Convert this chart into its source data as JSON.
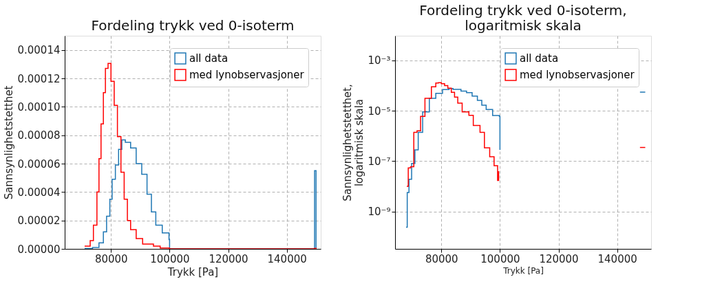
{
  "chart_data": [
    {
      "type": "step",
      "title": "Fordeling trykk ved 0-isoterm",
      "xlabel": "Trykk [Pa]",
      "ylabel": "Sannsynlighetstetthet",
      "xlim": [
        64200,
        151600
      ],
      "xticks": [
        80000,
        100000,
        120000,
        140000
      ],
      "ylim": [
        0,
        0.00015
      ],
      "yticks": [
        {
          "value": 0,
          "label": "0.00000"
        },
        {
          "value": 2e-05,
          "label": "0.00002"
        },
        {
          "value": 4e-05,
          "label": "0.00004"
        },
        {
          "value": 6e-05,
          "label": "0.00006"
        },
        {
          "value": 8e-05,
          "label": "0.00008"
        },
        {
          "value": 0.0001,
          "label": "0.00010"
        },
        {
          "value": 0.00012,
          "label": "0.00012"
        },
        {
          "value": 0.00014,
          "label": "0.00014"
        }
      ],
      "grid": true,
      "legend": "top right",
      "series": [
        {
          "name": "all data",
          "color": "#1f77b4",
          "x": [
            71000,
            73700,
            75900,
            77400,
            78500,
            79600,
            80400,
            81500,
            82600,
            83700,
            84900,
            86700,
            88600,
            90500,
            92300,
            93800,
            95300,
            97500,
            99800,
            100000,
            149500,
            150000
          ],
          "values": [
            2e-07,
            1e-06,
            4.2e-06,
            1.2e-05,
            2.3e-05,
            3.5e-05,
            4.9e-05,
            5.9e-05,
            7e-05,
            7.67e-05,
            7.5e-05,
            7.1e-05,
            6e-05,
            5.25e-05,
            3.85e-05,
            2.6e-05,
            1.67e-05,
            1.12e-05,
            6.5e-06,
            0,
            5.5e-05,
            0
          ]
        },
        {
          "name": "med lynobservasjoner",
          "color": "#ff0000",
          "x": [
            71000,
            72900,
            74000,
            75200,
            75900,
            76600,
            77400,
            78100,
            79000,
            80000,
            81100,
            82200,
            83400,
            84500,
            85600,
            86700,
            88600,
            90800,
            94500,
            96800,
            100000,
            149500,
            150000
          ],
          "values": [
            1.9e-06,
            5.8e-06,
            1.67e-05,
            4e-05,
            6.35e-05,
            8.8e-05,
            0.00011,
            0.000127,
            0.0001305,
            0.000118,
            0.000101,
            7.9e-05,
            5.4e-05,
            3.5e-05,
            2e-05,
            1.36e-05,
            7.3e-06,
            3.4e-06,
            1.9e-06,
            6e-07,
            0,
            3.5e-07,
            0
          ]
        }
      ]
    },
    {
      "type": "step",
      "title": "Fordeling trykk ved 0-isoterm,\nlogaritmisk skala",
      "xlabel": "Trykk [Pa]",
      "ylabel": "Sannsynlighetstetthet,\nlogaritmisk skala",
      "xlim": [
        64200,
        151600
      ],
      "xticks": [
        80000,
        100000,
        120000,
        140000
      ],
      "ylim": [
        3.3e-11,
        0.0095
      ],
      "yticks": [
        {
          "value": 1e-09,
          "label": "10⁻⁹"
        },
        {
          "value": 1e-07,
          "label": "10⁻⁷"
        },
        {
          "value": 1e-05,
          "label": "10⁻⁵"
        },
        {
          "value": 0.001,
          "label": "10⁻³"
        }
      ],
      "log": "y",
      "grid": true,
      "legend": "top right",
      "series": [
        {
          "name": "all data",
          "color": "#1f77b4",
          "x": [
            67970,
            68350,
            68950,
            69850,
            70980,
            72100,
            73610,
            75900,
            78100,
            80400,
            82600,
            84000,
            86700,
            88600,
            90500,
            92300,
            93800,
            95300,
            97500,
            99800,
            100000,
            100300,
            147800,
            149600
          ],
          "values": [
            2.4e-10,
            5.7e-09,
            1.9e-08,
            8.1e-08,
            2.8e-07,
            1.4e-06,
            9e-06,
            3.1e-05,
            4.9e-05,
            7e-05,
            7.7e-05,
            7.1e-05,
            6e-05,
            5.25e-05,
            3.85e-05,
            2.6e-05,
            1.67e-05,
            1.12e-05,
            6.5e-06,
            6e-06,
            2.8e-07,
            null,
            5.5e-05,
            5.5e-05
          ]
        },
        {
          "name": "med lynobservasjoner",
          "color": "#ff0000",
          "x": [
            68200,
            68700,
            69500,
            70600,
            71700,
            72900,
            74400,
            76600,
            78100,
            79000,
            80000,
            81100,
            82200,
            83400,
            84500,
            85600,
            87100,
            89400,
            90900,
            93200,
            94700,
            96500,
            98000,
            99200,
            99550,
            100000,
            147800,
            149600
          ],
          "values": [
            1e-08,
            5.4e-08,
            6e-08,
            1.4e-06,
            1.6e-06,
            6e-06,
            3.1e-05,
            9e-05,
            0.000127,
            0.00013,
            0.000118,
            0.0001,
            7.9e-05,
            5.4e-05,
            3.5e-05,
            2e-05,
            9e-06,
            6.6e-06,
            2.6e-06,
            1.4e-06,
            3.4e-07,
            1.5e-07,
            6.6e-08,
            1.7e-08,
            4e-08,
            null,
            3.5e-07,
            3.5e-07
          ]
        }
      ]
    }
  ]
}
